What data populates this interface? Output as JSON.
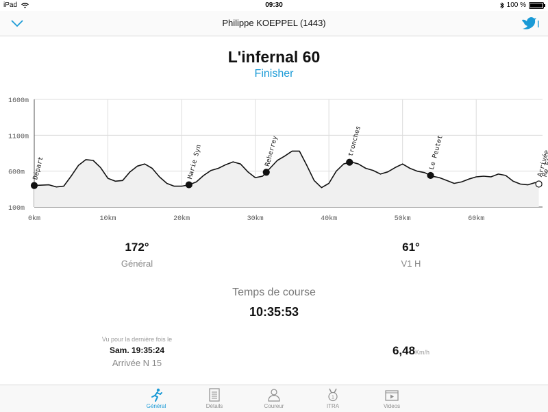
{
  "status_bar": {
    "device": "iPad",
    "time": "09:30",
    "battery": "100 %"
  },
  "header": {
    "title": "Philippe KOEPPEL (1443)"
  },
  "race": {
    "name": "L'infernal 60",
    "status": "Finisher"
  },
  "chart_data": {
    "type": "area",
    "xlabel": "",
    "ylabel": "",
    "x_ticks": [
      "0km",
      "10km",
      "20km",
      "30km",
      "40km",
      "50km",
      "60km"
    ],
    "y_ticks": [
      "100m",
      "600m",
      "1100m",
      "1600m"
    ],
    "xlim": [
      0,
      69
    ],
    "ylim": [
      100,
      1600
    ],
    "series": [
      {
        "x": [
          0,
          2,
          3,
          4,
          5,
          6,
          7,
          8,
          9,
          10,
          11,
          12,
          13,
          14,
          15,
          16,
          17,
          18,
          19,
          20,
          21,
          22,
          23,
          24,
          25,
          26,
          27,
          28,
          29,
          30,
          31,
          32,
          33,
          34,
          35,
          36,
          37,
          38,
          39,
          40,
          41,
          42,
          43,
          44,
          45,
          46,
          47,
          48,
          49,
          50,
          51,
          52,
          53,
          54,
          55,
          56,
          57,
          58,
          59,
          60,
          61,
          62,
          63,
          64,
          65,
          66,
          67,
          68,
          68.5
        ],
        "y": [
          400,
          410,
          380,
          390,
          530,
          680,
          760,
          750,
          650,
          500,
          460,
          470,
          590,
          670,
          700,
          640,
          520,
          430,
          390,
          390,
          410,
          450,
          540,
          610,
          640,
          690,
          730,
          700,
          590,
          510,
          530,
          640,
          750,
          810,
          880,
          880,
          680,
          470,
          370,
          430,
          600,
          700,
          730,
          700,
          640,
          610,
          560,
          590,
          650,
          700,
          640,
          600,
          580,
          530,
          510,
          470,
          430,
          450,
          490,
          520,
          530,
          520,
          560,
          540,
          460,
          420,
          410,
          440,
          420
        ]
      }
    ],
    "markers": [
      {
        "label": "Départ",
        "x": 0
      },
      {
        "label": "Marie Syn",
        "x": 21
      },
      {
        "label": "Reherrey",
        "x": 31.5
      },
      {
        "label": "tronches",
        "x": 42.8
      },
      {
        "label": "Le Peutet",
        "x": 53.8
      },
      {
        "label": "Arrivée",
        "x": 68.5
      },
      {
        "label": "Re Finish",
        "x": 68.5
      }
    ]
  },
  "stats": {
    "general_rank": "172°",
    "general_label": "Général",
    "category_rank": "61°",
    "category_label": "V1 H",
    "time_label": "Temps de course",
    "time_value": "10:35:53",
    "last_seen_caption": "Vu pour la dernière fois le",
    "last_seen_time": "Sam. 19:35:24",
    "last_seen_checkpoint": "Arrivée N 15",
    "speed_value": "6,48",
    "speed_unit": "Km/h"
  },
  "tabs": [
    {
      "label": "Général",
      "icon": "runner-icon",
      "active": true
    },
    {
      "label": "Détails",
      "icon": "list-icon",
      "active": false
    },
    {
      "label": "Coureur",
      "icon": "person-icon",
      "active": false
    },
    {
      "label": "ITRA",
      "icon": "medal-icon",
      "active": false
    },
    {
      "label": "Videos",
      "icon": "video-icon",
      "active": false
    }
  ],
  "colors": {
    "accent": "#1a9ad6"
  }
}
